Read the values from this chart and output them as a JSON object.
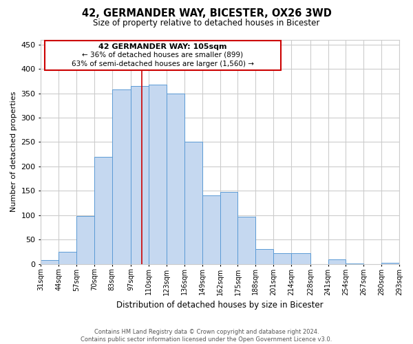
{
  "title": "42, GERMANDER WAY, BICESTER, OX26 3WD",
  "subtitle": "Size of property relative to detached houses in Bicester",
  "xlabel": "Distribution of detached houses by size in Bicester",
  "ylabel": "Number of detached properties",
  "footer_line1": "Contains HM Land Registry data © Crown copyright and database right 2024.",
  "footer_line2": "Contains public sector information licensed under the Open Government Licence v3.0.",
  "annotation_line1": "42 GERMANDER WAY: 105sqm",
  "annotation_line2": "← 36% of detached houses are smaller (899)",
  "annotation_line3": "63% of semi-detached houses are larger (1,560) →",
  "bar_edges": [
    31,
    44,
    57,
    70,
    83,
    97,
    110,
    123,
    136,
    149,
    162,
    175,
    188,
    201,
    214,
    228,
    241,
    254,
    267,
    280,
    293
  ],
  "bar_heights": [
    8,
    25,
    98,
    220,
    358,
    365,
    368,
    350,
    250,
    140,
    148,
    97,
    30,
    22,
    22,
    0,
    10,
    1,
    0,
    3
  ],
  "bar_color": "#c5d8f0",
  "bar_edge_color": "#5b9bd5",
  "marker_x": 105,
  "marker_color": "#cc0000",
  "ylim": [
    0,
    460
  ],
  "xlim": [
    31,
    293
  ],
  "annotation_box_color": "#cc0000",
  "background_color": "#ffffff",
  "grid_color": "#cccccc",
  "figsize": [
    6.0,
    5.0
  ],
  "dpi": 100
}
